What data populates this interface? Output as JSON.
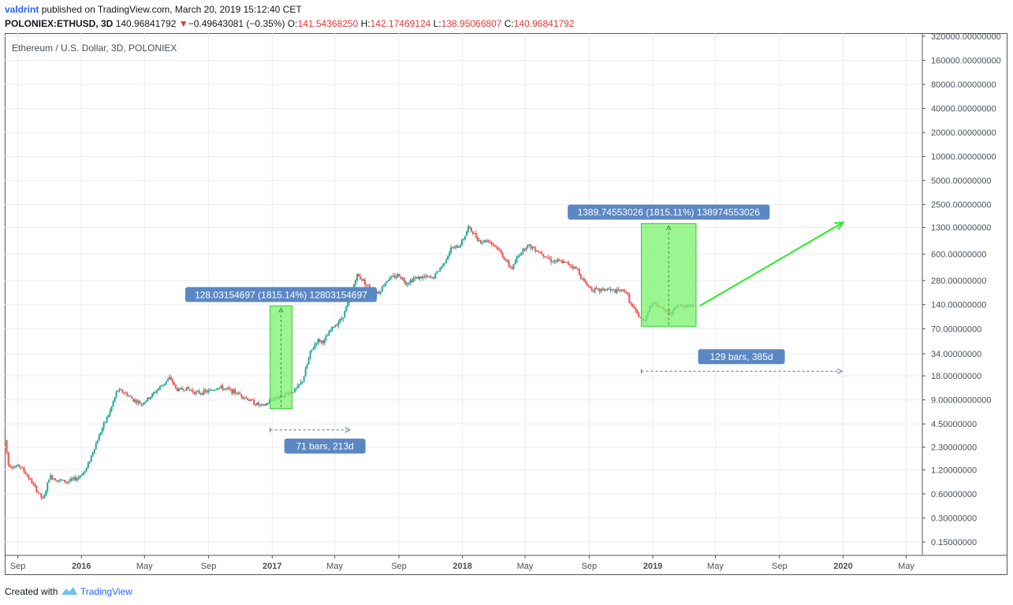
{
  "header": {
    "publisher": "valdrint",
    "published_text": "published on TradingView.com, March 20, 2019 15:12:40 CET",
    "symbol": "POLONIEX:ETHUSD, 3D",
    "last": "140.96841792",
    "change_arrow": "▼",
    "change": "−0.49643081 (−0.35%)",
    "o_label": "O:",
    "o_val": "141.54368250",
    "h_label": "H:",
    "h_val": "142.17469124",
    "l_label": "L:",
    "l_val": "138.95066807",
    "c_label": "C:",
    "c_val": "140.96841792"
  },
  "chart_data": {
    "type": "candlestick",
    "title": "Ethereum / U.S. Dollar, 3D, POLONIEX",
    "y_scale": "log",
    "ylim": [
      0.1,
      400000
    ],
    "y_ticks": [
      "320000.00000000",
      "160000.00000000",
      "80000.00000000",
      "40000.00000000",
      "20000.00000000",
      "10000.00000000",
      "5000.00000000",
      "2500.00000000",
      "1300.00000000",
      "600.00000000",
      "280.00000000",
      "140.00000000",
      "70.00000000",
      "34.00000000",
      "18.00000000",
      "9.00000000000",
      "4.50000000",
      "2.30000000",
      "1.20000000",
      "0.60000000",
      "0.30000000",
      "0.15000000"
    ],
    "y_tick_values": [
      320000,
      160000,
      80000,
      40000,
      20000,
      10000,
      5000,
      2500,
      1300,
      600,
      280,
      140,
      70,
      34,
      18,
      9,
      4.5,
      2.3,
      1.2,
      0.6,
      0.3,
      0.15
    ],
    "x_range": [
      "2015-08-07",
      "2020-06-01"
    ],
    "x_ticks": [
      {
        "date": "2015-09-01",
        "label": "Sep",
        "bold": false
      },
      {
        "date": "2016-01-01",
        "label": "2016",
        "bold": true
      },
      {
        "date": "2016-05-01",
        "label": "May",
        "bold": false
      },
      {
        "date": "2016-09-01",
        "label": "Sep",
        "bold": false
      },
      {
        "date": "2017-01-01",
        "label": "2017",
        "bold": true
      },
      {
        "date": "2017-05-01",
        "label": "May",
        "bold": false
      },
      {
        "date": "2017-09-01",
        "label": "Sep",
        "bold": false
      },
      {
        "date": "2018-01-01",
        "label": "2018",
        "bold": true
      },
      {
        "date": "2018-05-01",
        "label": "May",
        "bold": false
      },
      {
        "date": "2018-09-01",
        "label": "Sep",
        "bold": false
      },
      {
        "date": "2019-01-01",
        "label": "2019",
        "bold": true
      },
      {
        "date": "2019-05-01",
        "label": "May",
        "bold": false
      },
      {
        "date": "2019-09-01",
        "label": "Sep",
        "bold": false
      },
      {
        "date": "2020-01-01",
        "label": "2020",
        "bold": true
      },
      {
        "date": "2020-05-01",
        "label": "May",
        "bold": false
      }
    ],
    "price_path": [
      [
        "2015-08-08",
        2.8
      ],
      [
        "2015-08-14",
        1.4
      ],
      [
        "2015-08-24",
        1.3
      ],
      [
        "2015-09-05",
        1.35
      ],
      [
        "2015-09-20",
        1.0
      ],
      [
        "2015-10-05",
        0.7
      ],
      [
        "2015-10-20",
        0.5
      ],
      [
        "2015-11-01",
        1.0
      ],
      [
        "2015-11-15",
        0.9
      ],
      [
        "2015-12-05",
        0.85
      ],
      [
        "2015-12-25",
        0.95
      ],
      [
        "2016-01-10",
        1.2
      ],
      [
        "2016-01-25",
        2.2
      ],
      [
        "2016-02-10",
        4.0
      ],
      [
        "2016-02-25",
        6.5
      ],
      [
        "2016-03-10",
        12
      ],
      [
        "2016-03-25",
        11
      ],
      [
        "2016-04-10",
        9
      ],
      [
        "2016-04-25",
        8.0
      ],
      [
        "2016-05-10",
        9.5
      ],
      [
        "2016-05-25",
        12
      ],
      [
        "2016-06-10",
        15
      ],
      [
        "2016-06-20",
        17
      ],
      [
        "2016-07-01",
        12
      ],
      [
        "2016-07-20",
        12.5
      ],
      [
        "2016-08-10",
        11
      ],
      [
        "2016-09-01",
        11.5
      ],
      [
        "2016-09-20",
        13
      ],
      [
        "2016-10-10",
        12
      ],
      [
        "2016-11-01",
        10.5
      ],
      [
        "2016-12-01",
        8.0
      ],
      [
        "2016-12-15",
        7.5
      ],
      [
        "2017-01-05",
        9.5
      ],
      [
        "2017-01-25",
        10.5
      ],
      [
        "2017-02-15",
        12
      ],
      [
        "2017-03-01",
        16
      ],
      [
        "2017-03-15",
        35
      ],
      [
        "2017-03-28",
        50
      ],
      [
        "2017-04-10",
        48
      ],
      [
        "2017-04-25",
        70
      ],
      [
        "2017-05-15",
        95
      ],
      [
        "2017-06-01",
        180
      ],
      [
        "2017-06-12",
        330
      ],
      [
        "2017-06-25",
        280
      ],
      [
        "2017-07-10",
        210
      ],
      [
        "2017-07-25",
        200
      ],
      [
        "2017-08-10",
        290
      ],
      [
        "2017-09-01",
        330
      ],
      [
        "2017-09-15",
        260
      ],
      [
        "2017-10-01",
        300
      ],
      [
        "2017-10-20",
        310
      ],
      [
        "2017-11-05",
        300
      ],
      [
        "2017-11-25",
        450
      ],
      [
        "2017-12-10",
        700
      ],
      [
        "2017-12-25",
        750
      ],
      [
        "2018-01-05",
        1000
      ],
      [
        "2018-01-12",
        1300
      ],
      [
        "2018-02-05",
        850
      ],
      [
        "2018-02-20",
        900
      ],
      [
        "2018-03-10",
        700
      ],
      [
        "2018-03-25",
        500
      ],
      [
        "2018-04-05",
        390
      ],
      [
        "2018-04-20",
        600
      ],
      [
        "2018-05-05",
        780
      ],
      [
        "2018-05-20",
        700
      ],
      [
        "2018-06-05",
        600
      ],
      [
        "2018-06-20",
        500
      ],
      [
        "2018-07-10",
        480
      ],
      [
        "2018-07-25",
        450
      ],
      [
        "2018-08-10",
        380
      ],
      [
        "2018-08-20",
        280
      ],
      [
        "2018-09-05",
        220
      ],
      [
        "2018-09-20",
        210
      ],
      [
        "2018-10-05",
        220
      ],
      [
        "2018-10-20",
        205
      ],
      [
        "2018-11-10",
        210
      ],
      [
        "2018-11-20",
        140
      ],
      [
        "2018-12-05",
        100
      ],
      [
        "2018-12-15",
        85
      ],
      [
        "2018-12-25",
        130
      ],
      [
        "2019-01-05",
        150
      ],
      [
        "2019-01-20",
        120
      ],
      [
        "2019-02-05",
        110
      ],
      [
        "2019-02-20",
        140
      ],
      [
        "2019-03-05",
        135
      ],
      [
        "2019-03-20",
        141
      ]
    ],
    "annotations": [
      {
        "type": "range_label",
        "text": "128.03154697 (1815.14%) 12803154697",
        "x_start": "2016-12-28",
        "x_end": "2017-02-08",
        "y_low": 7.0,
        "y_high": 135
      },
      {
        "type": "bars_label",
        "text": "71 bars, 213d",
        "x_start": "2016-12-28",
        "x_end": "2017-05-30"
      },
      {
        "type": "range_label",
        "text": "1389.74553026 (1815.11%) 138974553026",
        "x_start": "2018-12-10",
        "x_end": "2019-03-25",
        "y_low": 75,
        "y_high": 1450
      },
      {
        "type": "bars_label",
        "text": "129 bars, 385d",
        "x_start": "2018-12-10",
        "x_end": "2019-12-30"
      },
      {
        "type": "trend_arrow",
        "x_start": "2019-04-01",
        "y_start": 135,
        "x_end": "2020-01-01",
        "y_end": 1500
      }
    ],
    "colors": {
      "up": "#26a69a",
      "down": "#ef5350",
      "range_fill": "#7cf26c",
      "range_stroke": "#2ecc2e",
      "label_bg": "#5b87c4",
      "bars_label_bg": "#5b87c4",
      "arrow": "#22ee22",
      "dotted": "#5c6b8a",
      "grid": "#e9ecf1"
    }
  },
  "footer": {
    "created_with": "Created with",
    "brand": "TradingView",
    "logo_icon": "tradingview-logo-icon"
  }
}
